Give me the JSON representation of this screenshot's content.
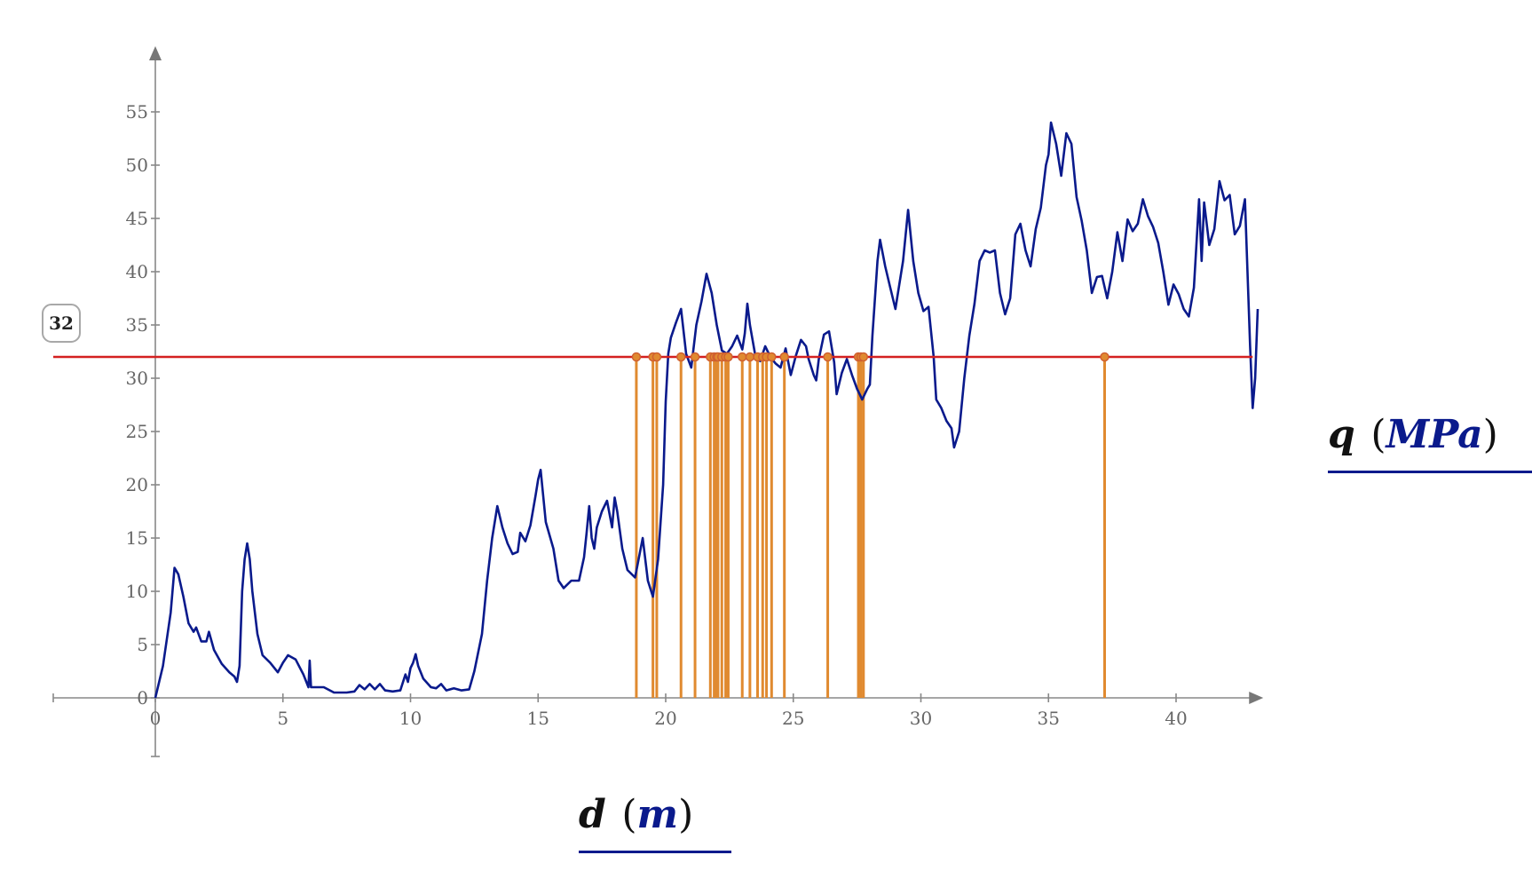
{
  "chart_data": {
    "type": "line",
    "xlim": [
      -4,
      43
    ],
    "ylim": [
      -5.5,
      60
    ],
    "x_ticks": [
      0,
      5,
      10,
      15,
      20,
      25,
      30,
      35,
      40
    ],
    "y_ticks": [
      0,
      5,
      10,
      15,
      20,
      25,
      30,
      35,
      40,
      45,
      50,
      55
    ],
    "threshold": 32,
    "series": [
      {
        "color": "#0a1a8c",
        "points": [
          [
            0,
            0
          ],
          [
            0.3,
            3
          ],
          [
            0.6,
            8
          ],
          [
            0.75,
            12.2
          ],
          [
            0.9,
            11.6
          ],
          [
            1.1,
            9.5
          ],
          [
            1.3,
            7
          ],
          [
            1.5,
            6.2
          ],
          [
            1.6,
            6.6
          ],
          [
            1.8,
            5.3
          ],
          [
            2.0,
            5.3
          ],
          [
            2.1,
            6.2
          ],
          [
            2.3,
            4.5
          ],
          [
            2.6,
            3.2
          ],
          [
            2.9,
            2.4
          ],
          [
            3.1,
            2
          ],
          [
            3.2,
            1.5
          ],
          [
            3.3,
            3
          ],
          [
            3.4,
            10
          ],
          [
            3.5,
            13
          ],
          [
            3.6,
            14.5
          ],
          [
            3.7,
            13
          ],
          [
            3.8,
            10
          ],
          [
            4.0,
            6
          ],
          [
            4.2,
            4
          ],
          [
            4.5,
            3.3
          ],
          [
            4.8,
            2.4
          ],
          [
            5.0,
            3.3
          ],
          [
            5.2,
            4
          ],
          [
            5.5,
            3.6
          ],
          [
            5.8,
            2.2
          ],
          [
            6.0,
            1
          ],
          [
            6.05,
            3.5
          ],
          [
            6.1,
            1
          ],
          [
            6.3,
            1
          ],
          [
            6.6,
            1
          ],
          [
            7.0,
            0.5
          ],
          [
            7.5,
            0.5
          ],
          [
            7.8,
            0.6
          ],
          [
            8.0,
            1.2
          ],
          [
            8.2,
            0.8
          ],
          [
            8.4,
            1.3
          ],
          [
            8.6,
            0.8
          ],
          [
            8.8,
            1.3
          ],
          [
            9.0,
            0.7
          ],
          [
            9.3,
            0.6
          ],
          [
            9.6,
            0.7
          ],
          [
            9.8,
            2.2
          ],
          [
            9.9,
            1.5
          ],
          [
            10.0,
            2.8
          ],
          [
            10.1,
            3.3
          ],
          [
            10.2,
            4.1
          ],
          [
            10.3,
            3
          ],
          [
            10.5,
            1.8
          ],
          [
            10.8,
            1.0
          ],
          [
            11.0,
            0.9
          ],
          [
            11.2,
            1.3
          ],
          [
            11.4,
            0.7
          ],
          [
            11.7,
            0.9
          ],
          [
            12.0,
            0.7
          ],
          [
            12.3,
            0.8
          ],
          [
            12.5,
            2.5
          ],
          [
            12.8,
            6
          ],
          [
            13.0,
            11
          ],
          [
            13.2,
            15
          ],
          [
            13.4,
            18
          ],
          [
            13.6,
            16
          ],
          [
            13.8,
            14.5
          ],
          [
            14.0,
            13.5
          ],
          [
            14.2,
            13.7
          ],
          [
            14.3,
            15.5
          ],
          [
            14.5,
            14.7
          ],
          [
            14.7,
            16.2
          ],
          [
            14.9,
            19
          ],
          [
            15.0,
            20.5
          ],
          [
            15.1,
            21.4
          ],
          [
            15.3,
            16.5
          ],
          [
            15.6,
            14
          ],
          [
            15.8,
            11
          ],
          [
            16.0,
            10.3
          ],
          [
            16.3,
            11
          ],
          [
            16.6,
            11
          ],
          [
            16.8,
            13.2
          ],
          [
            16.9,
            15.5
          ],
          [
            17.0,
            18
          ],
          [
            17.1,
            15
          ],
          [
            17.2,
            14
          ],
          [
            17.3,
            16
          ],
          [
            17.5,
            17.5
          ],
          [
            17.7,
            18.5
          ],
          [
            17.9,
            16
          ],
          [
            18.0,
            18.8
          ],
          [
            18.1,
            17.5
          ],
          [
            18.3,
            14
          ],
          [
            18.5,
            12
          ],
          [
            18.8,
            11.3
          ],
          [
            19.1,
            15
          ],
          [
            19.3,
            11
          ],
          [
            19.5,
            9.5
          ],
          [
            19.7,
            13
          ],
          [
            19.9,
            20
          ],
          [
            20.0,
            27.8
          ],
          [
            20.1,
            32.3
          ],
          [
            20.2,
            33.8
          ],
          [
            20.4,
            35.2
          ],
          [
            20.6,
            36.5
          ],
          [
            20.8,
            32.3
          ],
          [
            21.0,
            31
          ],
          [
            21.2,
            35
          ],
          [
            21.4,
            37.2
          ],
          [
            21.6,
            39.8
          ],
          [
            21.8,
            38
          ],
          [
            22.0,
            35
          ],
          [
            22.2,
            32.6
          ],
          [
            22.4,
            32.3
          ],
          [
            22.6,
            33
          ],
          [
            22.8,
            34
          ],
          [
            23.0,
            32.7
          ],
          [
            23.1,
            34.2
          ],
          [
            23.2,
            37
          ],
          [
            23.3,
            35
          ],
          [
            23.5,
            32.3
          ],
          [
            23.7,
            31.6
          ],
          [
            23.9,
            33
          ],
          [
            24.1,
            32
          ],
          [
            24.3,
            31.4
          ],
          [
            24.5,
            31
          ],
          [
            24.7,
            32.8
          ],
          [
            24.9,
            30.3
          ],
          [
            25.1,
            32.1
          ],
          [
            25.3,
            33.6
          ],
          [
            25.5,
            33
          ],
          [
            25.6,
            31.8
          ],
          [
            25.8,
            30.3
          ],
          [
            25.9,
            29.8
          ],
          [
            26.0,
            31.8
          ],
          [
            26.2,
            34.1
          ],
          [
            26.4,
            34.4
          ],
          [
            26.6,
            31.5
          ],
          [
            26.7,
            28.5
          ],
          [
            26.9,
            30.5
          ],
          [
            27.1,
            31.8
          ],
          [
            27.3,
            30.3
          ],
          [
            27.5,
            29
          ],
          [
            27.7,
            28
          ],
          [
            27.9,
            29
          ],
          [
            28.0,
            29.4
          ],
          [
            28.1,
            34
          ],
          [
            28.3,
            41
          ],
          [
            28.4,
            43
          ],
          [
            28.6,
            40.5
          ],
          [
            28.8,
            38.5
          ],
          [
            29.0,
            36.5
          ],
          [
            29.3,
            41
          ],
          [
            29.5,
            45.8
          ],
          [
            29.7,
            41
          ],
          [
            29.9,
            38
          ],
          [
            30.1,
            36.3
          ],
          [
            30.3,
            36.7
          ],
          [
            30.5,
            32
          ],
          [
            30.6,
            28
          ],
          [
            30.8,
            27.2
          ],
          [
            31.0,
            26
          ],
          [
            31.2,
            25.3
          ],
          [
            31.3,
            23.5
          ],
          [
            31.5,
            25
          ],
          [
            31.7,
            30
          ],
          [
            31.9,
            34
          ],
          [
            32.1,
            37
          ],
          [
            32.3,
            41
          ],
          [
            32.5,
            42
          ],
          [
            32.7,
            41.8
          ],
          [
            32.9,
            42
          ],
          [
            33.1,
            38
          ],
          [
            33.3,
            36
          ],
          [
            33.5,
            37.5
          ],
          [
            33.7,
            43.5
          ],
          [
            33.9,
            44.5
          ],
          [
            34.1,
            42
          ],
          [
            34.3,
            40.5
          ],
          [
            34.5,
            44
          ],
          [
            34.7,
            46
          ],
          [
            34.9,
            50
          ],
          [
            35.0,
            51
          ],
          [
            35.1,
            54
          ],
          [
            35.3,
            52
          ],
          [
            35.5,
            49
          ],
          [
            35.7,
            53
          ],
          [
            35.9,
            52
          ],
          [
            36.1,
            47
          ],
          [
            36.3,
            44.8
          ],
          [
            36.5,
            42
          ],
          [
            36.7,
            38
          ],
          [
            36.9,
            39.5
          ],
          [
            37.1,
            39.6
          ],
          [
            37.3,
            37.5
          ],
          [
            37.5,
            40
          ],
          [
            37.7,
            43.7
          ],
          [
            37.9,
            41
          ],
          [
            38.1,
            44.9
          ],
          [
            38.3,
            43.8
          ],
          [
            38.5,
            44.5
          ],
          [
            38.7,
            46.8
          ],
          [
            38.9,
            45.2
          ],
          [
            39.1,
            44.2
          ],
          [
            39.3,
            42.7
          ],
          [
            39.5,
            40
          ],
          [
            39.7,
            36.9
          ],
          [
            39.9,
            38.8
          ],
          [
            40.1,
            37.9
          ],
          [
            40.3,
            36.5
          ],
          [
            40.5,
            35.8
          ],
          [
            40.7,
            38.5
          ],
          [
            40.9,
            46.8
          ],
          [
            41.0,
            41
          ],
          [
            41.1,
            46.5
          ],
          [
            41.3,
            42.5
          ],
          [
            41.5,
            44
          ],
          [
            41.7,
            48.5
          ],
          [
            41.9,
            46.7
          ],
          [
            42.1,
            47.2
          ],
          [
            42.3,
            43.5
          ],
          [
            42.5,
            44.3
          ],
          [
            42.7,
            46.8
          ],
          [
            42.9,
            33
          ],
          [
            43.0,
            27.2
          ],
          [
            43.1,
            30
          ],
          [
            43.2,
            36.5
          ]
        ]
      }
    ],
    "crossing_x": [
      18.85,
      19.5,
      19.65,
      20.6,
      21.15,
      21.75,
      21.9,
      22.0,
      22.05,
      22.2,
      22.35,
      22.45,
      23.0,
      23.3,
      23.6,
      23.8,
      23.95,
      24.15,
      24.65,
      26.35,
      27.55,
      27.65,
      27.75,
      37.2
    ],
    "crossing_style": {
      "line_color": "#e08a30",
      "marker_color": "#d06030",
      "threshold_color": "#d42020"
    }
  },
  "threshold_label": "32",
  "y_axis_title": {
    "var": "q",
    "unit": "MPa"
  },
  "x_axis_title": {
    "var": "d",
    "unit": "m"
  }
}
